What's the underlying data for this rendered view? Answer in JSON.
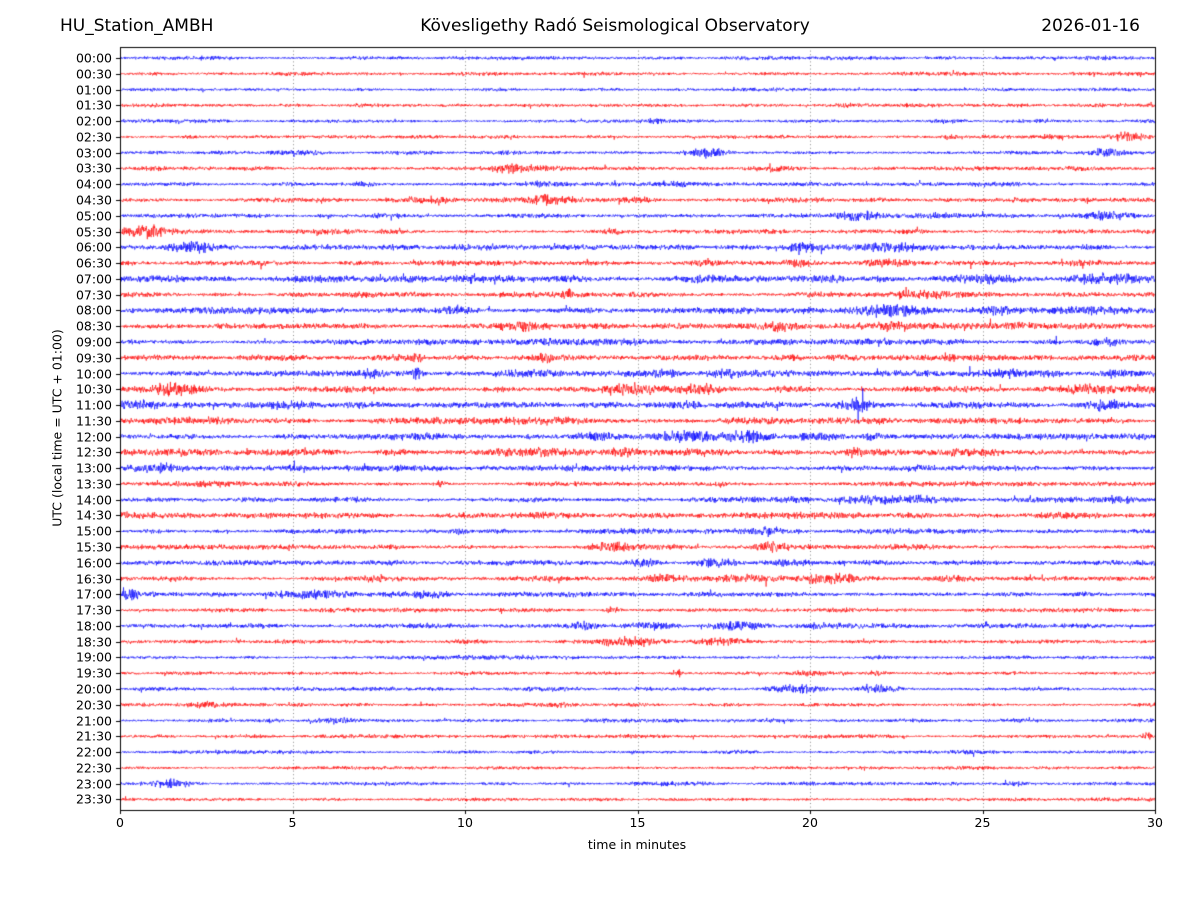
{
  "header": {
    "station": "HU_Station_AMBH",
    "observatory": "Kövesligethy Radó Seismological Observatory",
    "date": "2026-01-16"
  },
  "chart_data": {
    "type": "line",
    "subtype": "helicorder-dayplot",
    "title": "Kövesligethy Radó Seismological Observatory",
    "station": "HU_Station_AMBH",
    "date": "2026-01-16",
    "xlabel": "time in minutes",
    "ylabel": "UTC (local time = UTC + 01:00)",
    "x_range": [
      0,
      30
    ],
    "x_ticks": [
      0,
      5,
      10,
      15,
      20,
      25,
      30
    ],
    "grid_minutes": [
      5,
      10,
      15,
      20,
      25
    ],
    "grid_style": "dotted",
    "trace_colors": {
      "even_rows": "#0000ff",
      "odd_rows": "#ff0000"
    },
    "minutes_per_row": 30,
    "bursts_format": "[center_minute, width_minutes, peak_amplitude_px]",
    "rows": [
      {
        "label": "00:00",
        "color": "#0000ff",
        "base": 1.8,
        "bursts": [
          [
            10,
            4,
            0.4
          ]
        ]
      },
      {
        "label": "00:30",
        "color": "#ff0000",
        "base": 1.8,
        "bursts": [
          [
            5,
            1,
            0.6
          ]
        ]
      },
      {
        "label": "01:00",
        "color": "#0000ff",
        "base": 1.7,
        "bursts": []
      },
      {
        "label": "01:30",
        "color": "#ff0000",
        "base": 1.7,
        "bursts": [
          [
            22,
            3,
            0.4
          ]
        ]
      },
      {
        "label": "02:00",
        "color": "#0000ff",
        "base": 1.8,
        "bursts": [
          [
            15.5,
            0.4,
            1.5
          ],
          [
            24,
            0.8,
            1.6
          ]
        ]
      },
      {
        "label": "02:30",
        "color": "#ff0000",
        "base": 1.8,
        "bursts": [
          [
            24,
            0.3,
            2.5
          ],
          [
            27,
            0.5,
            2
          ],
          [
            29.3,
            0.8,
            4.5
          ]
        ]
      },
      {
        "label": "03:00",
        "color": "#0000ff",
        "base": 2.0,
        "bursts": [
          [
            5,
            1.5,
            1
          ],
          [
            17,
            0.8,
            4.5
          ],
          [
            28.6,
            0.5,
            4
          ]
        ]
      },
      {
        "label": "03:30",
        "color": "#ff0000",
        "base": 2.0,
        "bursts": [
          [
            11.5,
            1.2,
            4
          ],
          [
            19,
            1,
            1.5
          ],
          [
            27,
            2,
            1
          ]
        ]
      },
      {
        "label": "04:00",
        "color": "#0000ff",
        "base": 2.0,
        "bursts": [
          [
            7,
            0.6,
            2
          ],
          [
            12.5,
            1,
            2
          ],
          [
            16,
            0.8,
            1.5
          ],
          [
            25,
            0.6,
            1.5
          ]
        ]
      },
      {
        "label": "04:30",
        "color": "#ff0000",
        "base": 2.2,
        "bursts": [
          [
            9,
            1,
            3.5
          ],
          [
            12.3,
            0.9,
            5
          ],
          [
            15,
            0.7,
            2.5
          ],
          [
            20,
            2,
            1
          ]
        ]
      },
      {
        "label": "05:00",
        "color": "#0000ff",
        "base": 2.0,
        "bursts": [
          [
            7.5,
            0.5,
            1.5
          ],
          [
            21.5,
            0.8,
            4.5
          ],
          [
            23.7,
            0.4,
            2
          ],
          [
            28.5,
            1.2,
            3.5
          ]
        ]
      },
      {
        "label": "05:30",
        "color": "#ff0000",
        "base": 2.2,
        "bursts": [
          [
            0.7,
            0.9,
            6.5
          ],
          [
            6,
            1.5,
            2
          ],
          [
            14.3,
            0.3,
            3
          ]
        ]
      },
      {
        "label": "06:00",
        "color": "#0000ff",
        "base": 2.5,
        "bursts": [
          [
            2.2,
            0.9,
            4.5
          ],
          [
            13,
            4,
            1
          ],
          [
            19.8,
            0.7,
            4
          ],
          [
            22.3,
            1.2,
            2.5
          ],
          [
            26,
            2,
            1
          ]
        ]
      },
      {
        "label": "06:30",
        "color": "#ff0000",
        "base": 2.5,
        "bursts": [
          [
            17,
            0.6,
            3
          ],
          [
            19.7,
            0.5,
            3
          ],
          [
            22.5,
            1.5,
            2
          ],
          [
            28,
            1,
            1.5
          ]
        ]
      },
      {
        "label": "07:00",
        "color": "#0000ff",
        "base": 3.0,
        "bursts": [
          [
            6,
            1.2,
            2.5
          ],
          [
            10,
            0.8,
            3.5
          ],
          [
            13,
            1.5,
            1.5
          ],
          [
            17,
            1,
            2
          ],
          [
            20.7,
            0.5,
            2.5
          ],
          [
            25,
            1,
            3
          ],
          [
            28.8,
            1.2,
            3.5
          ]
        ]
      },
      {
        "label": "07:30",
        "color": "#ff0000",
        "base": 2.4,
        "bursts": [
          [
            7,
            0.8,
            2
          ],
          [
            13,
            0.3,
            3
          ],
          [
            23,
            1.3,
            4
          ],
          [
            28,
            1.5,
            1.5
          ]
        ]
      },
      {
        "label": "08:00",
        "color": "#0000ff",
        "base": 3.0,
        "bursts": [
          [
            2,
            1.5,
            1.5
          ],
          [
            9.7,
            0.5,
            3
          ],
          [
            22.3,
            1.3,
            5.5
          ],
          [
            25.5,
            0.8,
            3
          ],
          [
            28,
            1.5,
            2
          ]
        ]
      },
      {
        "label": "08:30",
        "color": "#ff0000",
        "base": 3.0,
        "bursts": [
          [
            5,
            2,
            1.5
          ],
          [
            11.7,
            0.9,
            4.5
          ],
          [
            19.2,
            0.5,
            3
          ],
          [
            22.3,
            1,
            4.5
          ],
          [
            27,
            2,
            1.5
          ]
        ]
      },
      {
        "label": "09:00",
        "color": "#0000ff",
        "base": 2.8,
        "bursts": [
          [
            10,
            5,
            0.8
          ],
          [
            20,
            3,
            0.8
          ],
          [
            28.6,
            0.6,
            3.5
          ]
        ]
      },
      {
        "label": "09:30",
        "color": "#ff0000",
        "base": 2.8,
        "bursts": [
          [
            8.6,
            0.3,
            3.5
          ],
          [
            12.3,
            0.3,
            3
          ],
          [
            19.5,
            0.4,
            2
          ],
          [
            25,
            3,
            0.8
          ]
        ]
      },
      {
        "label": "10:00",
        "color": "#0000ff",
        "base": 3.0,
        "bursts": [
          [
            7.2,
            0.6,
            4
          ],
          [
            8.6,
            0.25,
            5
          ],
          [
            12,
            1.5,
            1.5
          ],
          [
            15.8,
            0.6,
            2.5
          ],
          [
            17.5,
            0.7,
            2.5
          ],
          [
            23,
            0.8,
            2
          ],
          [
            25.7,
            0.6,
            2.5
          ],
          [
            29,
            0.9,
            3.5
          ]
        ]
      },
      {
        "label": "10:30",
        "color": "#ff0000",
        "base": 3.2,
        "bursts": [
          [
            1.5,
            0.9,
            4
          ],
          [
            7,
            1.5,
            1.5
          ],
          [
            14.8,
            1.4,
            4.5
          ],
          [
            16.8,
            0.8,
            4
          ],
          [
            19.5,
            0.9,
            2.5
          ],
          [
            23,
            0.7,
            2
          ],
          [
            28,
            0.9,
            4
          ]
        ]
      },
      {
        "label": "11:00",
        "color": "#0000ff",
        "base": 3.0,
        "bursts": [
          [
            0.5,
            0.8,
            3.5
          ],
          [
            5,
            2,
            1.5
          ],
          [
            16.5,
            0.6,
            2.5
          ],
          [
            21.4,
            0.5,
            5
          ],
          [
            24,
            1,
            1.5
          ],
          [
            28.5,
            0.9,
            4
          ]
        ]
      },
      {
        "label": "11:30",
        "color": "#ff0000",
        "base": 2.8,
        "bursts": [
          [
            3,
            2,
            1
          ],
          [
            12,
            3,
            0.8
          ],
          [
            20,
            3,
            0.8
          ],
          [
            27,
            2,
            0.8
          ]
        ]
      },
      {
        "label": "12:00",
        "color": "#0000ff",
        "base": 3.0,
        "bursts": [
          [
            8,
            1.5,
            1.2
          ],
          [
            13.8,
            0.8,
            3
          ],
          [
            16.5,
            1.2,
            5
          ],
          [
            18.3,
            0.9,
            5
          ],
          [
            20.3,
            0.8,
            3
          ],
          [
            21.8,
            0.4,
            2.5
          ]
        ]
      },
      {
        "label": "12:30",
        "color": "#ff0000",
        "base": 3.0,
        "bursts": [
          [
            2,
            1.5,
            1.2
          ],
          [
            12.3,
            1.2,
            4
          ],
          [
            14.5,
            0.6,
            3
          ],
          [
            17,
            1.5,
            1.5
          ],
          [
            21.3,
            0.3,
            4
          ],
          [
            25,
            2,
            1
          ]
        ]
      },
      {
        "label": "13:00",
        "color": "#0000ff",
        "base": 2.8,
        "bursts": [
          [
            1.2,
            0.9,
            4
          ],
          [
            7,
            2,
            1
          ],
          [
            15,
            3,
            0.8
          ],
          [
            24,
            3,
            0.8
          ]
        ]
      },
      {
        "label": "13:30",
        "color": "#ff0000",
        "base": 2.2,
        "bursts": [
          [
            3,
            2,
            0.8
          ],
          [
            9.3,
            0.25,
            3.5
          ],
          [
            17.4,
            0.3,
            2
          ],
          [
            24,
            3,
            0.6
          ]
        ]
      },
      {
        "label": "14:00",
        "color": "#0000ff",
        "base": 2.5,
        "bursts": [
          [
            19.7,
            0.7,
            2.5
          ],
          [
            21.8,
            1,
            4
          ],
          [
            23.2,
            0.6,
            3
          ],
          [
            26.8,
            1.3,
            2
          ],
          [
            29,
            0.8,
            2.5
          ]
        ]
      },
      {
        "label": "14:30",
        "color": "#ff0000",
        "base": 2.6,
        "bursts": [
          [
            4,
            3,
            0.8
          ],
          [
            12,
            3,
            0.8
          ],
          [
            20,
            3,
            0.8
          ],
          [
            27,
            2,
            0.8
          ]
        ]
      },
      {
        "label": "15:00",
        "color": "#0000ff",
        "base": 2.3,
        "bursts": [
          [
            9.8,
            0.3,
            2.5
          ],
          [
            15,
            2,
            1
          ],
          [
            18.8,
            0.5,
            3
          ],
          [
            23,
            2,
            0.8
          ]
        ]
      },
      {
        "label": "15:30",
        "color": "#ff0000",
        "base": 2.4,
        "bursts": [
          [
            14.2,
            0.9,
            4.5
          ],
          [
            18.9,
            0.6,
            4
          ],
          [
            22,
            2,
            1
          ]
        ]
      },
      {
        "label": "16:00",
        "color": "#0000ff",
        "base": 2.4,
        "bursts": [
          [
            15.2,
            0.6,
            3.5
          ],
          [
            17.3,
            0.9,
            4.5
          ],
          [
            19.5,
            1,
            2.5
          ],
          [
            27,
            2,
            0.8
          ]
        ]
      },
      {
        "label": "16:30",
        "color": "#ff0000",
        "base": 2.4,
        "bursts": [
          [
            7.4,
            0.3,
            3
          ],
          [
            15.8,
            0.9,
            4
          ],
          [
            18,
            1,
            2.5
          ],
          [
            20.6,
            1,
            4
          ],
          [
            24,
            1.5,
            1
          ]
        ]
      },
      {
        "label": "17:00",
        "color": "#0000ff",
        "base": 2.4,
        "bursts": [
          [
            0.2,
            0.5,
            6
          ],
          [
            5.5,
            1.5,
            4.5
          ],
          [
            9,
            0.8,
            2
          ],
          [
            13,
            2,
            0.8
          ]
        ]
      },
      {
        "label": "17:30",
        "color": "#ff0000",
        "base": 2.0,
        "bursts": [
          [
            7,
            3,
            0.6
          ],
          [
            14.3,
            0.3,
            3
          ],
          [
            20,
            3,
            0.5
          ]
        ]
      },
      {
        "label": "18:00",
        "color": "#0000ff",
        "base": 2.3,
        "bursts": [
          [
            13.4,
            0.5,
            4
          ],
          [
            15.5,
            0.8,
            4
          ],
          [
            17.8,
            1,
            4.5
          ],
          [
            20.3,
            0.7,
            2
          ]
        ]
      },
      {
        "label": "18:30",
        "color": "#ff0000",
        "base": 2.1,
        "bursts": [
          [
            14.8,
            1.2,
            4.5
          ],
          [
            17.5,
            1,
            2.5
          ]
        ]
      },
      {
        "label": "19:00",
        "color": "#0000ff",
        "base": 1.8,
        "bursts": [
          [
            10,
            4,
            0.4
          ],
          [
            22,
            0.5,
            1
          ]
        ]
      },
      {
        "label": "19:30",
        "color": "#ff0000",
        "base": 1.8,
        "bursts": [
          [
            16.2,
            0.2,
            3
          ],
          [
            20,
            1.2,
            1.8
          ],
          [
            21.9,
            0.4,
            2.5
          ]
        ]
      },
      {
        "label": "20:00",
        "color": "#0000ff",
        "base": 2.0,
        "bursts": [
          [
            19.7,
            0.9,
            3.5
          ],
          [
            22,
            0.9,
            3.5
          ],
          [
            26,
            2,
            0.6
          ]
        ]
      },
      {
        "label": "20:30",
        "color": "#ff0000",
        "base": 1.8,
        "bursts": [
          [
            2.5,
            0.8,
            1.8
          ],
          [
            12.8,
            0.7,
            2
          ]
        ]
      },
      {
        "label": "21:00",
        "color": "#0000ff",
        "base": 1.8,
        "bursts": [
          [
            4.4,
            0.4,
            1.6
          ],
          [
            6.2,
            0.9,
            1.8
          ]
        ]
      },
      {
        "label": "21:30",
        "color": "#ff0000",
        "base": 1.8,
        "bursts": [
          [
            14,
            4,
            0.4
          ],
          [
            29.8,
            0.2,
            3
          ]
        ]
      },
      {
        "label": "22:00",
        "color": "#0000ff",
        "base": 1.8,
        "bursts": [
          [
            24.5,
            0.7,
            1.2
          ]
        ]
      },
      {
        "label": "22:30",
        "color": "#ff0000",
        "base": 1.6,
        "bursts": [
          [
            10,
            5,
            0.3
          ]
        ]
      },
      {
        "label": "23:00",
        "color": "#0000ff",
        "base": 1.8,
        "bursts": [
          [
            1.5,
            0.8,
            4
          ],
          [
            15.8,
            0.4,
            1.3
          ],
          [
            26,
            0.5,
            0.8
          ]
        ]
      },
      {
        "label": "23:30",
        "color": "#ff0000",
        "base": 1.6,
        "bursts": [
          [
            11,
            4,
            0.3
          ]
        ]
      }
    ]
  }
}
